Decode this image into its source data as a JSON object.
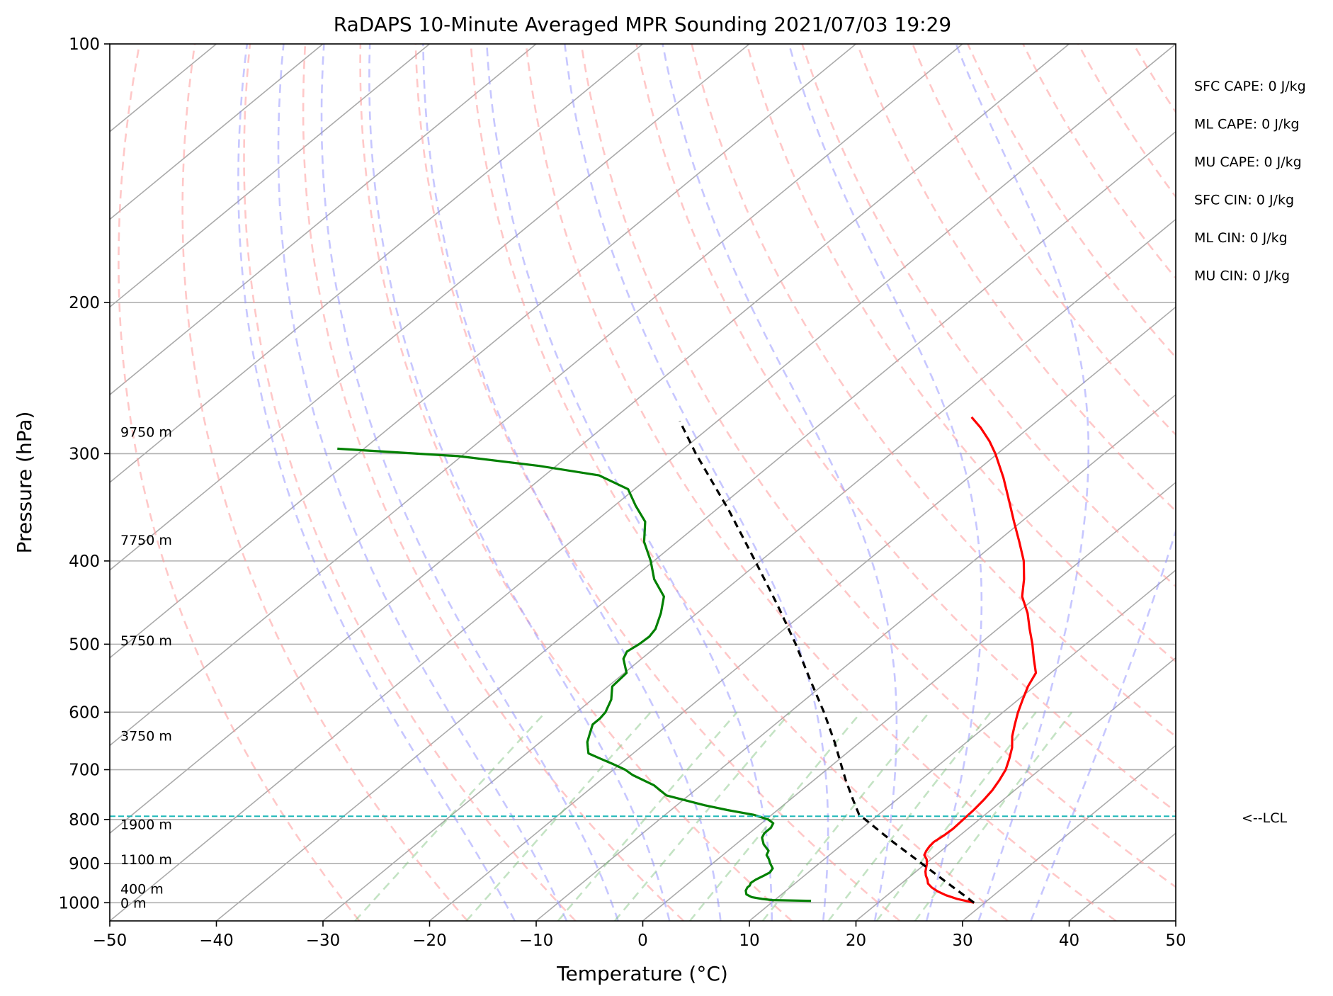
{
  "chart_data": {
    "type": "line",
    "title": "RaDAPS 10-Minute Averaged MPR Sounding 2021/07/03 19:29",
    "xlabel": "Temperature (°C)",
    "ylabel": "Pressure (hPa)",
    "xlim": [
      -50,
      50
    ],
    "ylim": [
      1050,
      100
    ],
    "yscale": "log",
    "skew": true,
    "xticks": [
      -50,
      -40,
      -30,
      -20,
      -10,
      0,
      10,
      20,
      30,
      40,
      50
    ],
    "xtick_labels": [
      "−50",
      "−40",
      "−30",
      "−20",
      "−10",
      "0",
      "10",
      "20",
      "30",
      "40",
      "50"
    ],
    "yticks": [
      100,
      200,
      300,
      400,
      500,
      600,
      700,
      800,
      900,
      1000
    ],
    "ytick_labels": [
      "100",
      "200",
      "300",
      "400",
      "500",
      "600",
      "700",
      "800",
      "900",
      "1000"
    ],
    "grid": true,
    "series": [
      {
        "kind": "temperature",
        "color": "#ff0000",
        "points": [
          [
            1000,
            29.0
          ],
          [
            990,
            27.0
          ],
          [
            980,
            25.5
          ],
          [
            970,
            24.3
          ],
          [
            960,
            23.3
          ],
          [
            950,
            22.5
          ],
          [
            940,
            22.0
          ],
          [
            930,
            21.4
          ],
          [
            920,
            20.9
          ],
          [
            910,
            20.5
          ],
          [
            900,
            20.1
          ],
          [
            890,
            19.6
          ],
          [
            880,
            18.9
          ],
          [
            870,
            18.6
          ],
          [
            860,
            18.4
          ],
          [
            850,
            18.3
          ],
          [
            835,
            18.5
          ],
          [
            820,
            18.6
          ],
          [
            800,
            18.5
          ],
          [
            780,
            18.4
          ],
          [
            760,
            18.2
          ],
          [
            740,
            17.9
          ],
          [
            720,
            17.4
          ],
          [
            700,
            16.8
          ],
          [
            680,
            15.9
          ],
          [
            660,
            14.9
          ],
          [
            640,
            13.6
          ],
          [
            620,
            12.5
          ],
          [
            600,
            11.4
          ],
          [
            580,
            10.4
          ],
          [
            560,
            9.4
          ],
          [
            540,
            8.6
          ],
          [
            520,
            6.8
          ],
          [
            500,
            5.0
          ],
          [
            480,
            3.0
          ],
          [
            460,
            1.0
          ],
          [
            440,
            -1.4
          ],
          [
            420,
            -3.2
          ],
          [
            400,
            -5.3
          ],
          [
            380,
            -7.9
          ],
          [
            360,
            -10.7
          ],
          [
            340,
            -13.6
          ],
          [
            320,
            -16.7
          ],
          [
            300,
            -20.2
          ],
          [
            290,
            -22.2
          ],
          [
            280,
            -24.5
          ],
          [
            272,
            -26.6
          ]
        ]
      },
      {
        "kind": "dewpoint",
        "color": "#008000",
        "points": [
          [
            995,
            13.5
          ],
          [
            993,
            9.8
          ],
          [
            990,
            8.7
          ],
          [
            985,
            7.5
          ],
          [
            978,
            6.7
          ],
          [
            968,
            6.2
          ],
          [
            960,
            6.0
          ],
          [
            955,
            6.0
          ],
          [
            948,
            5.8
          ],
          [
            940,
            5.9
          ],
          [
            930,
            6.2
          ],
          [
            922,
            6.4
          ],
          [
            912,
            6.2
          ],
          [
            900,
            5.4
          ],
          [
            890,
            4.8
          ],
          [
            880,
            4.1
          ],
          [
            870,
            3.8
          ],
          [
            855,
            2.6
          ],
          [
            840,
            1.7
          ],
          [
            830,
            1.4
          ],
          [
            818,
            1.4
          ],
          [
            808,
            1.1
          ],
          [
            800,
            0.2
          ],
          [
            790,
            -1.7
          ],
          [
            780,
            -4.7
          ],
          [
            770,
            -7.4
          ],
          [
            750,
            -12.1
          ],
          [
            730,
            -14.4
          ],
          [
            710,
            -17.6
          ],
          [
            700,
            -18.9
          ],
          [
            690,
            -20.6
          ],
          [
            680,
            -22.4
          ],
          [
            670,
            -24.2
          ],
          [
            660,
            -24.9
          ],
          [
            650,
            -25.6
          ],
          [
            640,
            -26.1
          ],
          [
            630,
            -26.6
          ],
          [
            620,
            -27.1
          ],
          [
            610,
            -27.1
          ],
          [
            600,
            -27.3
          ],
          [
            580,
            -28.2
          ],
          [
            560,
            -29.6
          ],
          [
            540,
            -29.8
          ],
          [
            520,
            -31.7
          ],
          [
            510,
            -32.2
          ],
          [
            500,
            -31.9
          ],
          [
            490,
            -31.8
          ],
          [
            480,
            -32.1
          ],
          [
            460,
            -33.4
          ],
          [
            440,
            -35.0
          ],
          [
            420,
            -37.9
          ],
          [
            400,
            -40.3
          ],
          [
            380,
            -43.1
          ],
          [
            360,
            -45.3
          ],
          [
            345,
            -48.0
          ],
          [
            330,
            -50.6
          ],
          [
            318,
            -54.9
          ],
          [
            310,
            -61.6
          ],
          [
            302,
            -70.3
          ],
          [
            296,
            -82.5
          ]
        ]
      },
      {
        "kind": "parcel",
        "color": "#000000",
        "points": [
          [
            1000,
            29.0
          ],
          [
            950,
            24.4
          ],
          [
            900,
            19.6
          ],
          [
            850,
            14.5
          ],
          [
            800,
            9.3
          ],
          [
            790,
            8.2
          ],
          [
            760,
            6.0
          ],
          [
            720,
            3.0
          ],
          [
            700,
            1.5
          ],
          [
            650,
            -2.4
          ],
          [
            600,
            -6.8
          ],
          [
            550,
            -11.8
          ],
          [
            500,
            -17.2
          ],
          [
            450,
            -23.4
          ],
          [
            400,
            -30.5
          ],
          [
            350,
            -38.6
          ],
          [
            300,
            -48.3
          ],
          [
            275,
            -53.5
          ]
        ]
      }
    ],
    "background_lines": {
      "isotherm_step": 10,
      "dry_adiabats_theta_C": [
        -30,
        -20,
        -10,
        0,
        10,
        20,
        30,
        40,
        50,
        60,
        70,
        80,
        90,
        100,
        110,
        120,
        130,
        140,
        150,
        160
      ],
      "moist_adiabats_T_C": [
        -15,
        -10,
        -5,
        0,
        5,
        10,
        15,
        20,
        25,
        30,
        35
      ],
      "mixing_ratios_g_kg": [
        0.4,
        1,
        2,
        3,
        5,
        8,
        12,
        16,
        20
      ]
    },
    "lcl_pressure": 793,
    "lcl_label": "<--LCL",
    "height_labels": [
      {
        "pressure": 1000,
        "label": "0 m"
      },
      {
        "pressure": 963,
        "label": "400 m"
      },
      {
        "pressure": 890,
        "label": "1100 m"
      },
      {
        "pressure": 810,
        "label": "1900 m"
      },
      {
        "pressure": 639,
        "label": "3750 m"
      },
      {
        "pressure": 495,
        "label": "5750 m"
      },
      {
        "pressure": 378,
        "label": "7750 m"
      },
      {
        "pressure": 283,
        "label": "9750 m"
      }
    ],
    "annotations": [
      "SFC CAPE: 0 J/kg",
      "ML CAPE: 0 J/kg",
      "MU CAPE: 0 J/kg",
      "SFC CIN: 0 J/kg",
      "ML CIN: 0 J/kg",
      "MU CIN: 0 J/kg"
    ]
  }
}
